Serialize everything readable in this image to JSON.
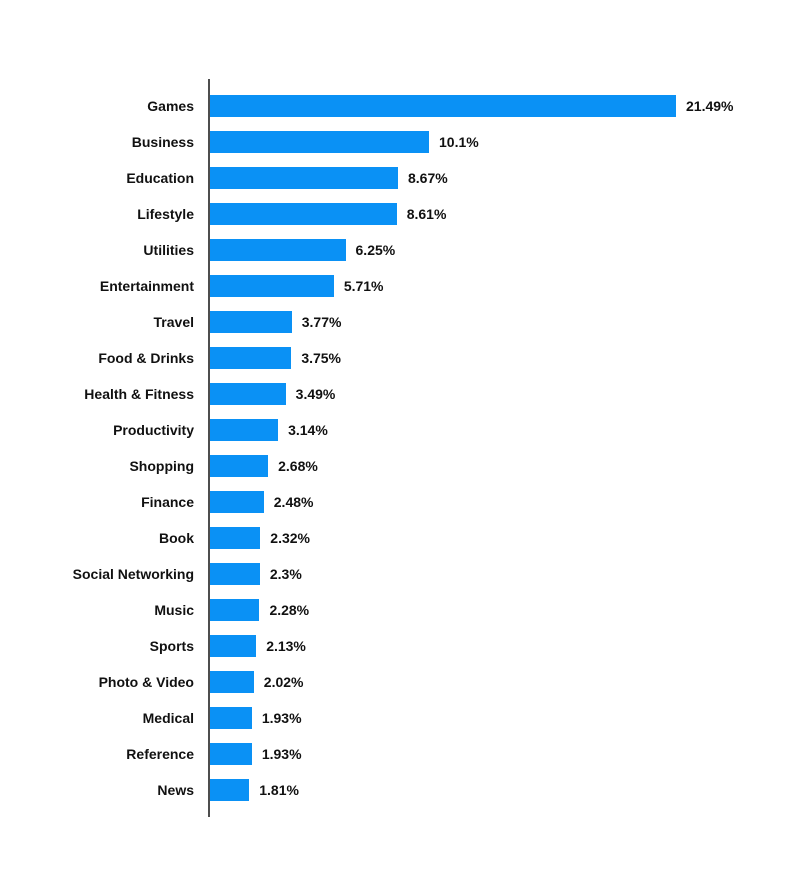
{
  "chart_data": {
    "type": "bar",
    "orientation": "horizontal",
    "title": "",
    "xlabel": "",
    "ylabel": "",
    "xlim": [
      0,
      21.49
    ],
    "grid": false,
    "legend": false,
    "categories": [
      "Games",
      "Business",
      "Education",
      "Lifestyle",
      "Utilities",
      "Entertainment",
      "Travel",
      "Food & Drinks",
      "Health & Fitness",
      "Productivity",
      "Shopping",
      "Finance",
      "Book",
      "Social Networking",
      "Music",
      "Sports",
      "Photo & Video",
      "Medical",
      "Reference",
      "News"
    ],
    "values": [
      21.49,
      10.1,
      8.67,
      8.61,
      6.25,
      5.71,
      3.77,
      3.75,
      3.49,
      3.14,
      2.68,
      2.48,
      2.32,
      2.3,
      2.28,
      2.13,
      2.02,
      1.93,
      1.93,
      1.81
    ],
    "value_labels": [
      "21.49%",
      "10.1%",
      "8.67%",
      "8.61%",
      "6.25%",
      "5.71%",
      "3.77%",
      "3.75%",
      "3.49%",
      "3.14%",
      "2.68%",
      "2.48%",
      "2.32%",
      "2.3%",
      "2.28%",
      "2.13%",
      "2.02%",
      "1.93%",
      "1.93%",
      "1.81%"
    ]
  },
  "colors": {
    "bar_color": "#0a91f5",
    "axis_color": "#4d4d4d",
    "label_color": "#111111",
    "background": "#ffffff"
  }
}
